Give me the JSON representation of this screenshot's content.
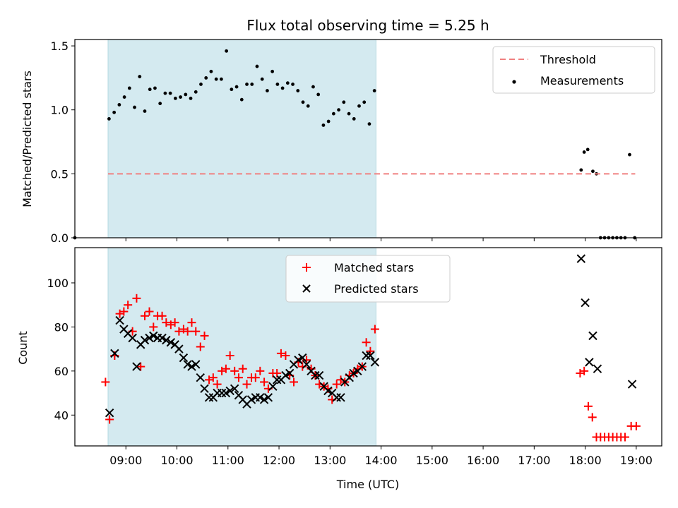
{
  "chart_data": [
    {
      "type": "scatter",
      "title": "Flux total observing time = 5.25 h",
      "ylabel": "Matched/Predicted stars",
      "ylim": [
        0,
        1.55
      ],
      "yticks": [
        "0.0",
        "0.5",
        "1.0",
        "1.5"
      ],
      "shaded_region": {
        "x_start": 8.65,
        "x_end": 13.9,
        "color": "#d4eaf0"
      },
      "legend": {
        "position": "top-right",
        "entries": [
          "Threshold",
          "Measurements"
        ]
      },
      "series": [
        {
          "name": "Threshold",
          "style": "dashed-line",
          "color": "#f08080",
          "x": [
            8.65,
            18.98
          ],
          "y": [
            0.5,
            0.5
          ]
        },
        {
          "name": "Measurements",
          "style": "dot",
          "color": "#000000",
          "x": [
            8.0,
            8.67,
            8.77,
            8.87,
            8.97,
            9.07,
            9.17,
            9.27,
            9.37,
            9.47,
            9.57,
            9.67,
            9.77,
            9.87,
            9.97,
            10.07,
            10.17,
            10.27,
            10.37,
            10.47,
            10.57,
            10.67,
            10.77,
            10.87,
            10.97,
            11.07,
            11.17,
            11.27,
            11.37,
            11.47,
            11.57,
            11.67,
            11.77,
            11.87,
            11.97,
            12.07,
            12.17,
            12.27,
            12.37,
            12.47,
            12.57,
            12.67,
            12.77,
            12.87,
            12.97,
            13.07,
            13.17,
            13.27,
            13.37,
            13.47,
            13.57,
            13.67,
            13.77,
            13.87,
            17.92,
            17.98,
            18.05,
            18.15,
            18.22,
            18.3,
            18.38,
            18.46,
            18.54,
            18.62,
            18.7,
            18.78,
            18.87,
            18.97
          ],
          "y": [
            0.0,
            0.93,
            0.98,
            1.04,
            1.1,
            1.17,
            1.02,
            1.26,
            0.99,
            1.16,
            1.17,
            1.05,
            1.13,
            1.13,
            1.09,
            1.1,
            1.12,
            1.09,
            1.14,
            1.2,
            1.25,
            1.3,
            1.24,
            1.24,
            1.46,
            1.16,
            1.18,
            1.08,
            1.2,
            1.2,
            1.34,
            1.24,
            1.15,
            1.3,
            1.2,
            1.17,
            1.21,
            1.2,
            1.15,
            1.06,
            1.03,
            1.18,
            1.12,
            0.88,
            0.91,
            0.97,
            1.0,
            1.06,
            0.97,
            0.93,
            1.03,
            1.06,
            0.89,
            1.15,
            0.53,
            0.67,
            0.69,
            0.52,
            0.5,
            0.0,
            0.0,
            0.0,
            0.0,
            0.0,
            0.0,
            0.0,
            0.65,
            0.0
          ],
          "note_x_values_in_hours_utc": true
        }
      ]
    },
    {
      "type": "scatter",
      "xlabel": "Time (UTC)",
      "ylabel": "Count",
      "ylim": [
        26,
        116
      ],
      "yticks": [
        "40",
        "60",
        "80",
        "100"
      ],
      "xticks": [
        "09:00",
        "10:00",
        "11:00",
        "12:00",
        "13:00",
        "14:00",
        "15:00",
        "16:00",
        "17:00",
        "18:00",
        "19:00"
      ],
      "xlim": [
        8.0,
        19.5
      ],
      "shaded_region": {
        "x_start": 8.65,
        "x_end": 13.9,
        "color": "#d4eaf0"
      },
      "legend": {
        "position": "top-center",
        "entries": [
          "Matched stars",
          "Predicted stars"
        ]
      },
      "series": [
        {
          "name": "Matched stars",
          "marker": "+",
          "color": "#ff0000",
          "x": [
            8.6,
            8.68,
            8.78,
            8.88,
            8.96,
            9.04,
            9.13,
            9.21,
            9.29,
            9.37,
            9.46,
            9.54,
            9.62,
            9.71,
            9.79,
            9.88,
            9.96,
            10.04,
            10.13,
            10.21,
            10.29,
            10.37,
            10.46,
            10.54,
            10.63,
            10.71,
            10.79,
            10.88,
            10.96,
            11.04,
            11.13,
            11.21,
            11.29,
            11.37,
            11.46,
            11.54,
            11.63,
            11.71,
            11.79,
            11.88,
            11.96,
            12.04,
            12.13,
            12.21,
            12.29,
            12.38,
            12.46,
            12.54,
            12.63,
            12.71,
            12.79,
            12.88,
            12.96,
            13.04,
            13.13,
            13.21,
            13.29,
            13.38,
            13.46,
            13.54,
            13.63,
            13.71,
            13.79,
            13.88,
            17.9,
            17.98,
            18.06,
            18.14,
            18.22,
            18.3,
            18.38,
            18.46,
            18.54,
            18.62,
            18.7,
            18.78,
            18.9,
            19.0
          ],
          "y": [
            55,
            38,
            67,
            86,
            87,
            90,
            78,
            93,
            62,
            85,
            87,
            80,
            85,
            85,
            82,
            81,
            82,
            78,
            79,
            78,
            82,
            78,
            71,
            76,
            56,
            57,
            54,
            60,
            61,
            67,
            60,
            57,
            61,
            54,
            57,
            57,
            60,
            55,
            52,
            59,
            59,
            68,
            67,
            58,
            55,
            64,
            62,
            65,
            61,
            58,
            54,
            53,
            52,
            47,
            54,
            56,
            55,
            58,
            59,
            61,
            62,
            73,
            69,
            79,
            59,
            60,
            44,
            39,
            30,
            30,
            30,
            30,
            30,
            30,
            30,
            30,
            35,
            35
          ]
        },
        {
          "name": "Predicted stars",
          "marker": "x",
          "color": "#000000",
          "x": [
            8.68,
            8.78,
            8.88,
            8.96,
            9.04,
            9.13,
            9.21,
            9.29,
            9.37,
            9.46,
            9.54,
            9.62,
            9.71,
            9.79,
            9.88,
            9.96,
            10.04,
            10.13,
            10.21,
            10.29,
            10.37,
            10.46,
            10.54,
            10.63,
            10.71,
            10.79,
            10.88,
            10.96,
            11.04,
            11.13,
            11.21,
            11.29,
            11.37,
            11.46,
            11.54,
            11.63,
            11.71,
            11.79,
            11.88,
            11.96,
            12.04,
            12.13,
            12.21,
            12.29,
            12.38,
            12.46,
            12.54,
            12.63,
            12.71,
            12.79,
            12.88,
            12.96,
            13.04,
            13.13,
            13.21,
            13.29,
            13.38,
            13.46,
            13.54,
            13.63,
            13.71,
            13.79,
            13.88,
            17.92,
            18.0,
            18.08,
            18.15,
            18.24,
            18.92
          ],
          "y": [
            41,
            68,
            83,
            79,
            77,
            75,
            62,
            72,
            74,
            75,
            76,
            75,
            75,
            74,
            73,
            72,
            70,
            66,
            63,
            62,
            63,
            57,
            52,
            48,
            48,
            50,
            50,
            50,
            51,
            52,
            49,
            47,
            45,
            47,
            48,
            48,
            47,
            48,
            53,
            56,
            56,
            58,
            59,
            63,
            65,
            66,
            63,
            60,
            58,
            58,
            53,
            51,
            50,
            48,
            48,
            55,
            57,
            59,
            60,
            62,
            67,
            67,
            64,
            111,
            91,
            64,
            76,
            61,
            54
          ]
        }
      ]
    }
  ]
}
